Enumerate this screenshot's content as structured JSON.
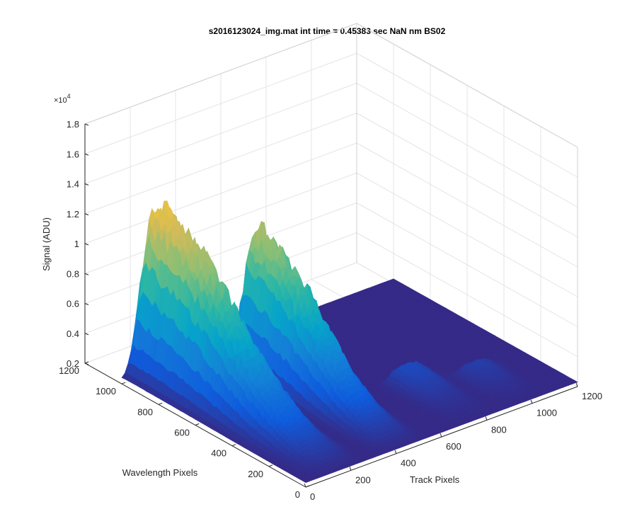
{
  "chart_data": {
    "type": "surface",
    "title": "s2016123024_img.mat int time = 0.45383 sec  NaN nm BS02",
    "xlabel": "Track Pixels",
    "ylabel": "Wavelength Pixels",
    "zlabel": "Signal (ADU)",
    "xlim": [
      0,
      1200
    ],
    "ylim": [
      0,
      1200
    ],
    "zlim": [
      2000,
      18000
    ],
    "x_ticks": [
      "0",
      "200",
      "400",
      "600",
      "800",
      "1000",
      "1200"
    ],
    "y_ticks": [
      "0",
      "200",
      "400",
      "600",
      "800",
      "1000",
      "1200"
    ],
    "z_ticks": [
      "0.2",
      "0.4",
      "0.6",
      "0.8",
      "1",
      "1.2",
      "1.4",
      "1.6",
      "1.8"
    ],
    "z_exponent_base": "×10",
    "z_exponent_power": "4",
    "grid": true,
    "colormap": [
      "#352a87",
      "#0f5cdd",
      "#1481d6",
      "#06a4ca",
      "#2eb7a4",
      "#87bf77",
      "#d1bb59",
      "#fec832",
      "#f9fb0e"
    ],
    "peaks": [
      {
        "track_center": 150,
        "track_width": 95,
        "wavelength_max": 1020,
        "peak_signal": 15000
      },
      {
        "track_center": 430,
        "track_width": 85,
        "wavelength_max": 820,
        "peak_signal": 13000
      },
      {
        "track_center": 760,
        "track_width": 80,
        "wavelength_max": 420,
        "peak_signal": 3600
      },
      {
        "track_center": 980,
        "track_width": 80,
        "wavelength_max": 320,
        "peak_signal": 3100
      }
    ],
    "baseline_signal": 2300
  }
}
